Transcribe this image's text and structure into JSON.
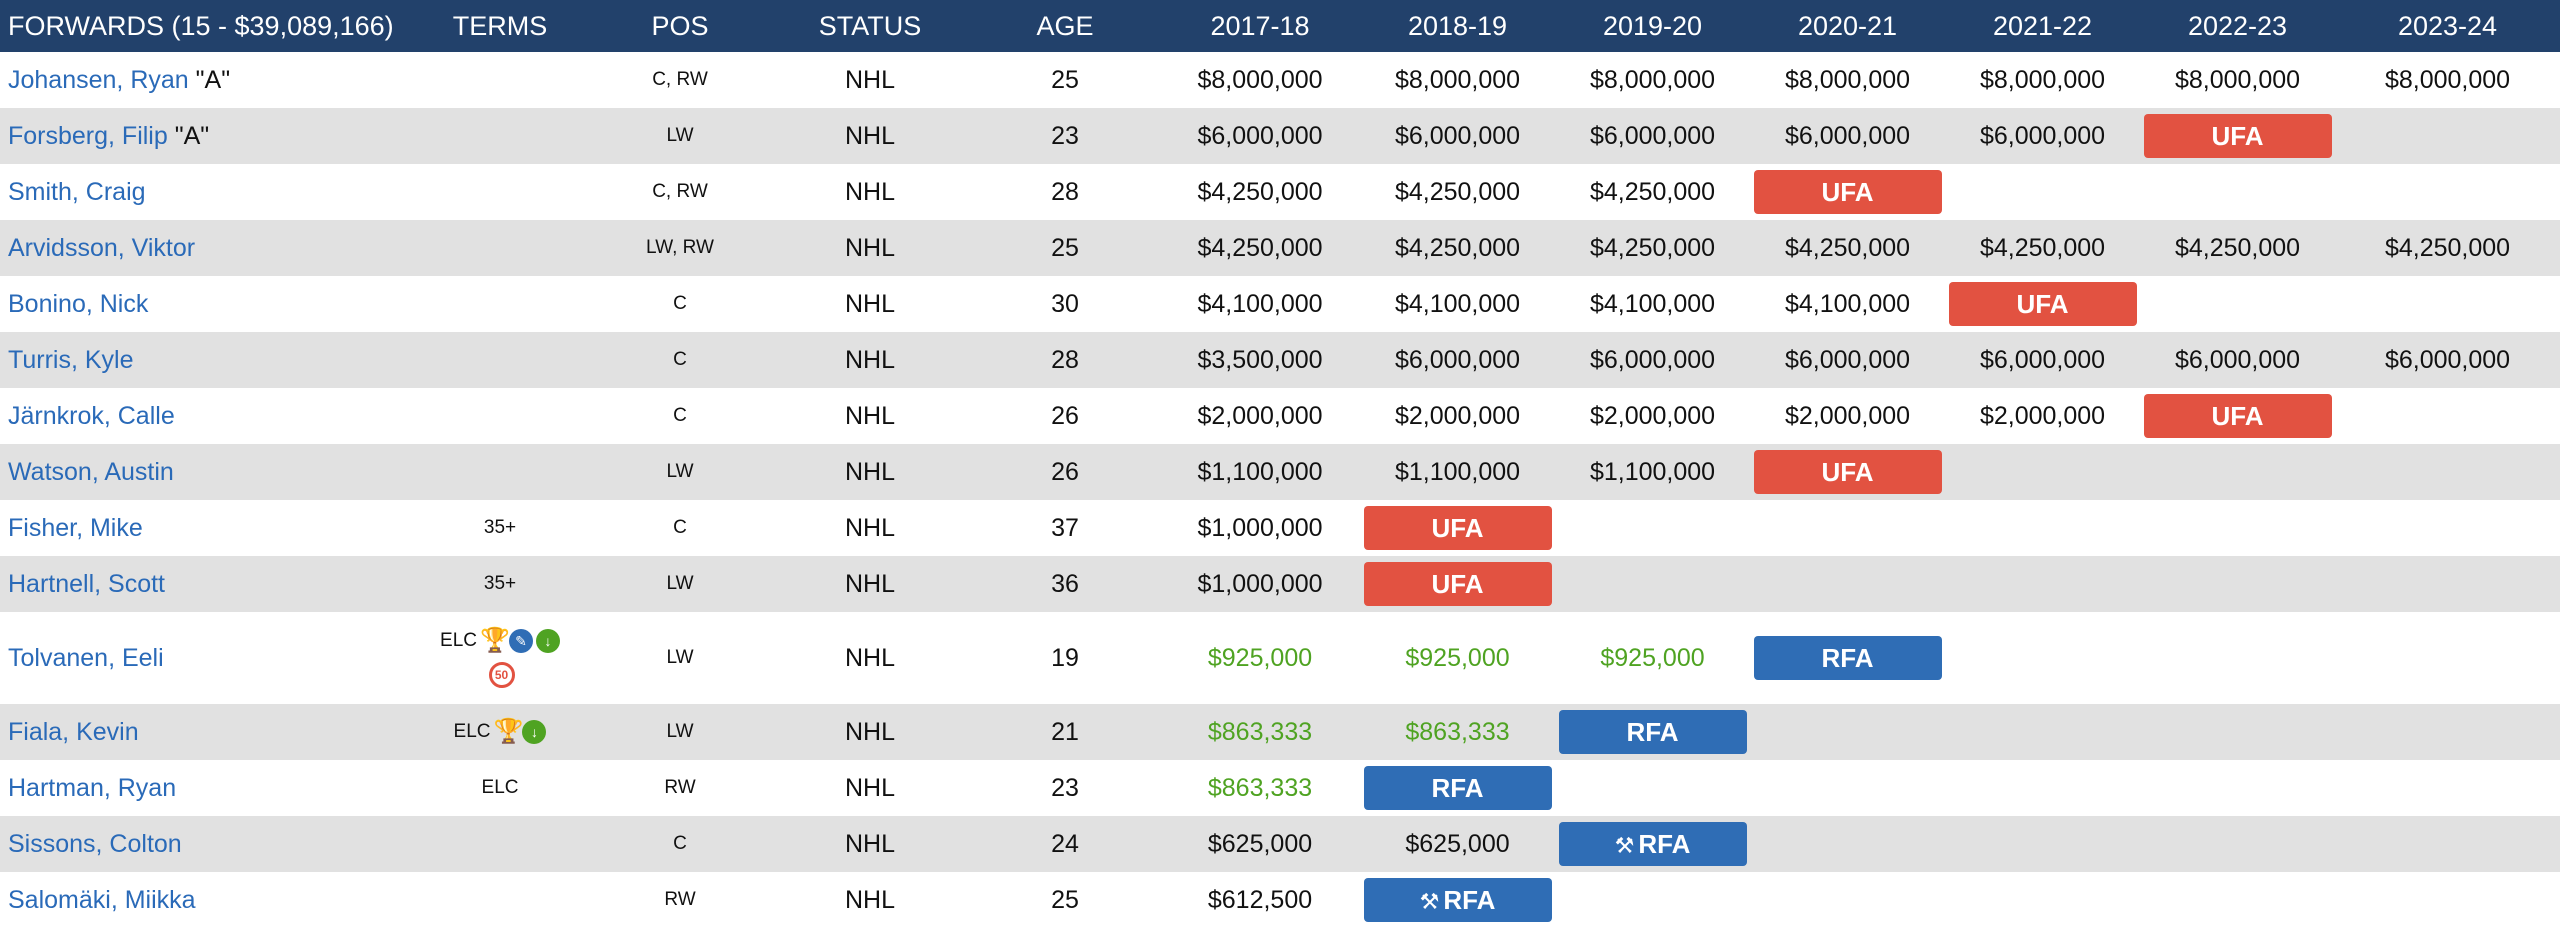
{
  "header": {
    "columns": [
      "FORWARDS (15 - $39,089,166)",
      "TERMS",
      "POS",
      "STATUS",
      "AGE",
      "2017-18",
      "2018-19",
      "2019-20",
      "2020-21",
      "2021-22",
      "2022-23",
      "2023-24"
    ]
  },
  "colors": {
    "header_bg": "#22416b",
    "player_link": "#2a6ab8",
    "ufa": "#e25241",
    "rfa": "#2f6db5",
    "elc_amount": "#4fa322",
    "alt_row": "#e1e1e1"
  },
  "rows": [
    {
      "name": "Johansen, Ryan",
      "tag": "\"A\"",
      "terms": "",
      "pos": "C, RW",
      "status": "NHL",
      "age": "25",
      "seasons": [
        "$8,000,000",
        "$8,000,000",
        "$8,000,000",
        "$8,000,000",
        "$8,000,000",
        "$8,000,000",
        "$8,000,000"
      ]
    },
    {
      "name": "Forsberg, Filip",
      "tag": "\"A\"",
      "terms": "",
      "pos": "LW",
      "status": "NHL",
      "age": "23",
      "seasons": [
        "$6,000,000",
        "$6,000,000",
        "$6,000,000",
        "$6,000,000",
        "$6,000,000",
        "UFA",
        ""
      ]
    },
    {
      "name": "Smith, Craig",
      "tag": "",
      "terms": "",
      "pos": "C, RW",
      "status": "NHL",
      "age": "28",
      "seasons": [
        "$4,250,000",
        "$4,250,000",
        "$4,250,000",
        "UFA",
        "",
        "",
        ""
      ]
    },
    {
      "name": "Arvidsson, Viktor",
      "tag": "",
      "terms": "",
      "pos": "LW, RW",
      "status": "NHL",
      "age": "25",
      "seasons": [
        "$4,250,000",
        "$4,250,000",
        "$4,250,000",
        "$4,250,000",
        "$4,250,000",
        "$4,250,000",
        "$4,250,000"
      ]
    },
    {
      "name": "Bonino, Nick",
      "tag": "",
      "terms": "",
      "pos": "C",
      "status": "NHL",
      "age": "30",
      "seasons": [
        "$4,100,000",
        "$4,100,000",
        "$4,100,000",
        "$4,100,000",
        "UFA",
        "",
        ""
      ]
    },
    {
      "name": "Turris, Kyle",
      "tag": "",
      "terms": "",
      "pos": "C",
      "status": "NHL",
      "age": "28",
      "seasons": [
        "$3,500,000",
        "$6,000,000",
        "$6,000,000",
        "$6,000,000",
        "$6,000,000",
        "$6,000,000",
        "$6,000,000"
      ]
    },
    {
      "name": "Järnkrok, Calle",
      "tag": "",
      "terms": "",
      "pos": "C",
      "status": "NHL",
      "age": "26",
      "seasons": [
        "$2,000,000",
        "$2,000,000",
        "$2,000,000",
        "$2,000,000",
        "$2,000,000",
        "UFA",
        ""
      ]
    },
    {
      "name": "Watson, Austin",
      "tag": "",
      "terms": "",
      "pos": "LW",
      "status": "NHL",
      "age": "26",
      "seasons": [
        "$1,100,000",
        "$1,100,000",
        "$1,100,000",
        "UFA",
        "",
        "",
        ""
      ]
    },
    {
      "name": "Fisher, Mike",
      "tag": "",
      "terms": "35+",
      "pos": "C",
      "status": "NHL",
      "age": "37",
      "seasons": [
        "$1,000,000",
        "UFA",
        "",
        "",
        "",
        "",
        ""
      ]
    },
    {
      "name": "Hartnell, Scott",
      "tag": "",
      "terms": "35+",
      "pos": "LW",
      "status": "NHL",
      "age": "36",
      "seasons": [
        "$1,000,000",
        "UFA",
        "",
        "",
        "",
        "",
        ""
      ]
    },
    {
      "name": "Tolvanen, Eeli",
      "tag": "",
      "terms": "ELC",
      "icons": [
        "trophy-icon",
        "pencil-icon",
        "download-icon",
        "50-icon"
      ],
      "pos": "LW",
      "status": "NHL",
      "age": "19",
      "seasons": [
        "$925,000",
        "$925,000",
        "$925,000",
        "RFA",
        "",
        "",
        ""
      ]
    },
    {
      "name": "Fiala, Kevin",
      "tag": "",
      "terms": "ELC",
      "icons": [
        "trophy-icon",
        "download-icon"
      ],
      "pos": "LW",
      "status": "NHL",
      "age": "21",
      "seasons": [
        "$863,333",
        "$863,333",
        "RFA",
        "",
        "",
        "",
        ""
      ]
    },
    {
      "name": "Hartman, Ryan",
      "tag": "",
      "terms": "ELC",
      "pos": "RW",
      "status": "NHL",
      "age": "23",
      "seasons": [
        "$863,333",
        "RFA",
        "",
        "",
        "",
        "",
        ""
      ]
    },
    {
      "name": "Sissons, Colton",
      "tag": "",
      "terms": "",
      "pos": "C",
      "status": "NHL",
      "age": "24",
      "seasons": [
        "$625,000",
        "$625,000",
        "RFA",
        "",
        "",
        "",
        ""
      ],
      "arb": "gavel-icon"
    },
    {
      "name": "Salomäki, Miikka",
      "tag": "",
      "terms": "",
      "pos": "RW",
      "status": "NHL",
      "age": "25",
      "seasons": [
        "$612,500",
        "RFA",
        "",
        "",
        "",
        "",
        ""
      ],
      "arb": "gavel-icon"
    }
  ]
}
